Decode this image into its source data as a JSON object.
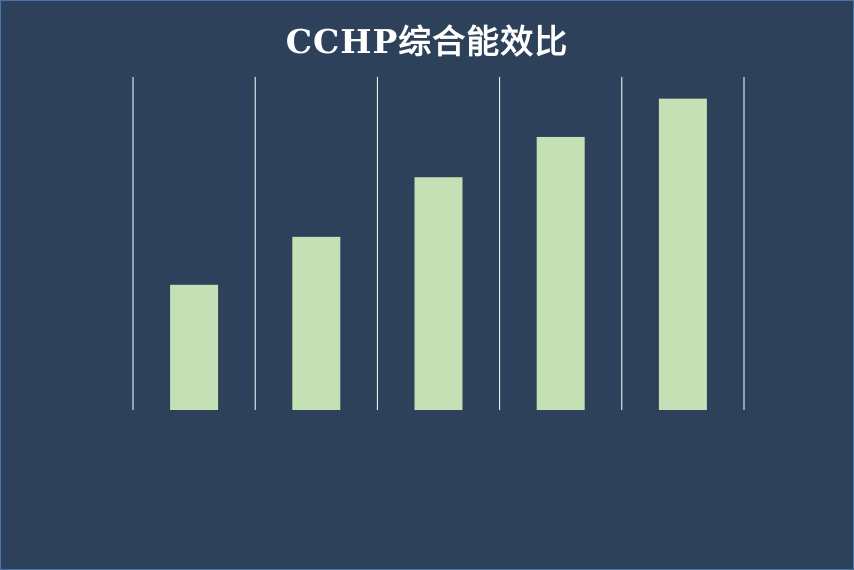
{
  "chart_data": {
    "type": "bar",
    "title": "CCHP综合能效比",
    "xlabel": "",
    "ylabel": "",
    "categories": [
      "",
      "",
      "",
      "",
      ""
    ],
    "values": [
      37.6,
      52.0,
      69.9,
      82.0,
      93.5
    ],
    "ylim": [
      0,
      100
    ],
    "grid": "vertical-separators",
    "legend": "none",
    "colors": {
      "background": "#2e415a",
      "bar": "#c5e0b4",
      "gridline": "#ffffff",
      "title": "#ffffff"
    }
  }
}
